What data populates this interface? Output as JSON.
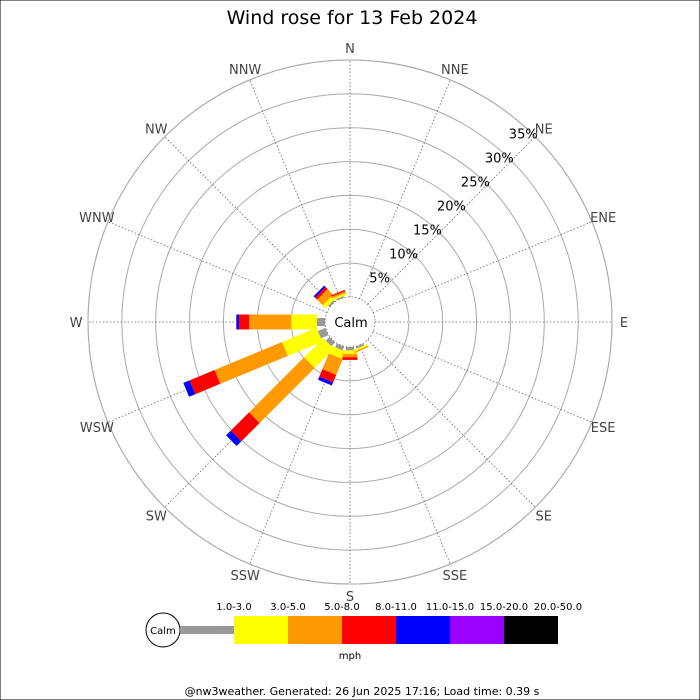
{
  "chart_data": {
    "type": "wind-rose",
    "title": "Wind rose for 13 Feb 2024",
    "directions": [
      "N",
      "NNE",
      "NE",
      "ENE",
      "E",
      "ESE",
      "SE",
      "SSE",
      "S",
      "SSW",
      "SW",
      "WSW",
      "W",
      "WNW",
      "NW",
      "NNW"
    ],
    "ring_labels": [
      "5%",
      "10%",
      "15%",
      "20%",
      "25%",
      "30%",
      "35%"
    ],
    "ring_values": [
      5,
      10,
      15,
      20,
      25,
      30,
      35
    ],
    "calm_label": "Calm",
    "unit": "mph",
    "speed_bins": [
      {
        "label": "1.0-3.0",
        "color": "#999999"
      },
      {
        "label": "3.0-5.0",
        "color": "#ffff00"
      },
      {
        "label": "5.0-8.0",
        "color": "#ff9900"
      },
      {
        "label": "8.0-11.0",
        "color": "#ff0000"
      },
      {
        "label": "11.0-15.0",
        "color": "#0000ff"
      },
      {
        "label": "15.0-20.0",
        "color": "#9900ff"
      },
      {
        "label": "20.0-50.0",
        "color": "#000000"
      }
    ],
    "series": [
      {
        "direction": "NW",
        "values": [
          0.3,
          0.6,
          1.2,
          0.4,
          0.3,
          0,
          0
        ]
      },
      {
        "direction": "NNW",
        "values": [
          0.2,
          0.3,
          0.3,
          0.2,
          0,
          0,
          0
        ]
      },
      {
        "direction": "W",
        "values": [
          1.2,
          3.8,
          6.2,
          1.5,
          0.4,
          0,
          0
        ]
      },
      {
        "direction": "WSW",
        "values": [
          1.2,
          5.5,
          10.8,
          4.0,
          1.0,
          0,
          0
        ]
      },
      {
        "direction": "SW",
        "values": [
          0.8,
          4.0,
          11.5,
          3.8,
          1.0,
          0,
          0
        ]
      },
      {
        "direction": "SSW",
        "values": [
          0.6,
          1.2,
          2.5,
          1.2,
          0.5,
          0,
          0
        ]
      },
      {
        "direction": "S",
        "values": [
          0.5,
          0.5,
          0.5,
          0.4,
          0,
          0,
          0
        ]
      },
      {
        "direction": "SSE",
        "values": [
          0.3,
          0.3,
          0.2,
          0,
          0,
          0,
          0
        ]
      }
    ],
    "rmax": 35
  },
  "footer": "@nw3weather. Generated: 26 Jun 2025 17:16; Load time: 0.39 s"
}
